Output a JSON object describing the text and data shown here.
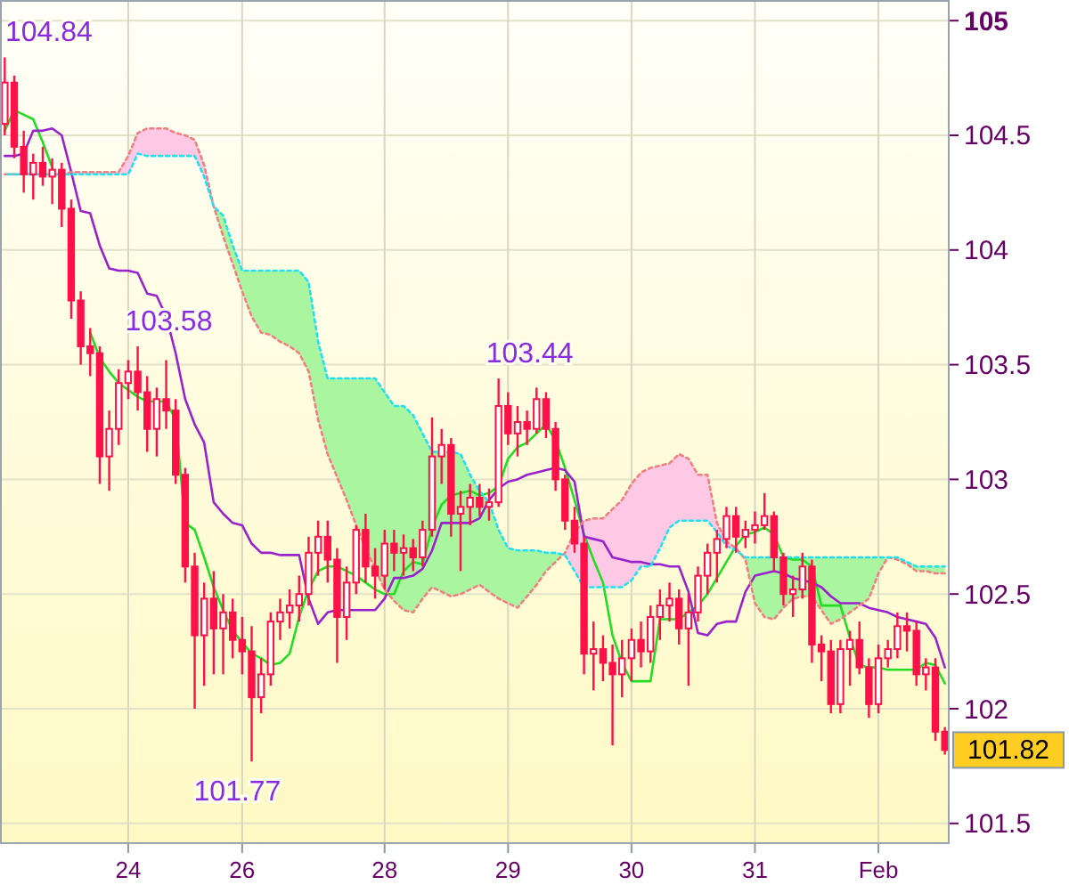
{
  "chart_data": {
    "type": "candlestick",
    "color": "#ff1048",
    "ylim": [
      101.41,
      105.09
    ],
    "yticks": [
      101.5,
      102,
      102.5,
      103,
      103.5,
      104,
      104.5,
      105
    ],
    "grid": true,
    "categories": [
      null,
      null,
      null,
      null,
      null,
      null,
      null,
      null,
      null,
      null,
      null,
      null,
      null,
      "24",
      null,
      null,
      null,
      null,
      null,
      null,
      null,
      null,
      null,
      null,
      null,
      "26",
      null,
      null,
      null,
      null,
      null,
      null,
      null,
      null,
      null,
      null,
      null,
      null,
      null,
      null,
      "28",
      null,
      null,
      null,
      null,
      null,
      null,
      null,
      null,
      null,
      null,
      null,
      null,
      "29",
      null,
      null,
      null,
      null,
      null,
      null,
      null,
      null,
      null,
      null,
      null,
      null,
      "30",
      null,
      null,
      null,
      null,
      null,
      null,
      null,
      null,
      null,
      null,
      null,
      null,
      "31",
      null,
      null,
      null,
      null,
      null,
      null,
      null,
      null,
      null,
      null,
      null,
      null,
      "Feb",
      null,
      null,
      null,
      null,
      null,
      null,
      null
    ],
    "ohlc": [
      [
        104.55,
        104.84,
        104.5,
        104.73
      ],
      [
        104.73,
        104.76,
        104.4,
        104.45
      ],
      [
        104.45,
        104.52,
        104.25,
        104.33
      ],
      [
        104.33,
        104.42,
        104.22,
        104.38
      ],
      [
        104.38,
        104.45,
        104.28,
        104.32
      ],
      [
        104.32,
        104.4,
        104.2,
        104.35
      ],
      [
        104.35,
        104.38,
        104.1,
        104.18
      ],
      [
        104.18,
        104.22,
        103.7,
        103.78
      ],
      [
        103.78,
        103.82,
        103.5,
        103.58
      ],
      [
        103.58,
        103.66,
        103.45,
        103.55
      ],
      [
        103.55,
        103.58,
        102.98,
        103.1
      ],
      [
        103.1,
        103.3,
        102.95,
        103.22
      ],
      [
        103.22,
        103.48,
        103.15,
        103.42
      ],
      [
        103.42,
        103.52,
        103.35,
        103.47
      ],
      [
        103.47,
        103.58,
        103.3,
        103.38
      ],
      [
        103.38,
        103.45,
        103.12,
        103.22
      ],
      [
        103.22,
        103.4,
        103.1,
        103.35
      ],
      [
        103.35,
        103.52,
        103.22,
        103.3
      ],
      [
        103.3,
        103.35,
        102.98,
        103.02
      ],
      [
        103.02,
        103.05,
        102.55,
        102.62
      ],
      [
        102.62,
        102.68,
        102.0,
        102.32
      ],
      [
        102.32,
        102.55,
        102.1,
        102.48
      ],
      [
        102.48,
        102.6,
        102.15,
        102.35
      ],
      [
        102.35,
        102.5,
        102.15,
        102.42
      ],
      [
        102.42,
        102.48,
        102.22,
        102.3
      ],
      [
        102.3,
        102.4,
        102.15,
        102.25
      ],
      [
        102.25,
        102.36,
        101.77,
        102.05
      ],
      [
        102.05,
        102.22,
        101.98,
        102.15
      ],
      [
        102.15,
        102.42,
        102.1,
        102.38
      ],
      [
        102.38,
        102.48,
        102.3,
        102.42
      ],
      [
        102.42,
        102.52,
        102.35,
        102.45
      ],
      [
        102.45,
        102.58,
        102.38,
        102.5
      ],
      [
        102.5,
        102.75,
        102.45,
        102.68
      ],
      [
        102.68,
        102.82,
        102.58,
        102.75
      ],
      [
        102.75,
        102.82,
        102.55,
        102.65
      ],
      [
        102.65,
        102.7,
        102.2,
        102.4
      ],
      [
        102.4,
        102.62,
        102.3,
        102.55
      ],
      [
        102.55,
        102.8,
        102.5,
        102.78
      ],
      [
        102.78,
        102.85,
        102.55,
        102.62
      ],
      [
        102.62,
        102.7,
        102.48,
        102.58
      ],
      [
        102.58,
        102.78,
        102.52,
        102.72
      ],
      [
        102.72,
        102.78,
        102.6,
        102.68
      ],
      [
        102.68,
        102.76,
        102.58,
        102.7
      ],
      [
        102.7,
        102.74,
        102.6,
        102.66
      ],
      [
        102.66,
        102.82,
        102.62,
        102.78
      ],
      [
        102.78,
        103.27,
        102.75,
        103.1
      ],
      [
        103.1,
        103.22,
        102.98,
        103.15
      ],
      [
        103.15,
        103.18,
        102.75,
        102.85
      ],
      [
        102.85,
        102.95,
        102.6,
        102.88
      ],
      [
        102.88,
        102.98,
        102.8,
        102.92
      ],
      [
        102.92,
        102.98,
        102.84,
        102.88
      ],
      [
        102.88,
        102.96,
        102.82,
        102.9
      ],
      [
        102.9,
        103.44,
        102.88,
        103.32
      ],
      [
        103.32,
        103.38,
        103.15,
        103.2
      ],
      [
        103.2,
        103.32,
        103.1,
        103.25
      ],
      [
        103.25,
        103.3,
        103.15,
        103.22
      ],
      [
        103.22,
        103.4,
        103.2,
        103.35
      ],
      [
        103.35,
        103.38,
        103.18,
        103.22
      ],
      [
        103.22,
        103.25,
        102.95,
        103.0
      ],
      [
        103.0,
        103.02,
        102.78,
        102.82
      ],
      [
        102.82,
        102.88,
        102.68,
        102.72
      ],
      [
        102.72,
        102.75,
        102.15,
        102.24
      ],
      [
        102.24,
        102.38,
        102.08,
        102.26
      ],
      [
        102.26,
        102.32,
        102.12,
        102.2
      ],
      [
        102.2,
        102.28,
        101.84,
        102.15
      ],
      [
        102.15,
        102.3,
        102.05,
        102.22
      ],
      [
        102.22,
        102.35,
        102.12,
        102.3
      ],
      [
        102.3,
        102.38,
        102.18,
        102.25
      ],
      [
        102.25,
        102.45,
        102.2,
        102.4
      ],
      [
        102.4,
        102.52,
        102.3,
        102.45
      ],
      [
        102.45,
        102.55,
        102.38,
        102.48
      ],
      [
        102.48,
        102.52,
        102.28,
        102.35
      ],
      [
        102.35,
        102.5,
        102.1,
        102.42
      ],
      [
        102.42,
        102.62,
        102.38,
        102.58
      ],
      [
        102.58,
        102.72,
        102.5,
        102.68
      ],
      [
        102.68,
        102.78,
        102.55,
        102.74
      ],
      [
        102.74,
        102.88,
        102.7,
        102.84
      ],
      [
        102.84,
        102.88,
        102.68,
        102.75
      ],
      [
        102.75,
        102.82,
        102.7,
        102.78
      ],
      [
        102.78,
        102.86,
        102.72,
        102.8
      ],
      [
        102.8,
        102.94,
        102.78,
        102.84
      ],
      [
        102.84,
        102.86,
        102.6,
        102.66
      ],
      [
        102.66,
        102.68,
        102.45,
        102.5
      ],
      [
        102.5,
        102.58,
        102.4,
        102.52
      ],
      [
        102.52,
        102.68,
        102.48,
        102.62
      ],
      [
        102.62,
        102.65,
        102.2,
        102.28
      ],
      [
        102.28,
        102.32,
        102.12,
        102.25
      ],
      [
        102.25,
        102.3,
        101.98,
        102.02
      ],
      [
        102.02,
        102.3,
        101.98,
        102.26
      ],
      [
        102.26,
        102.34,
        102.1,
        102.3
      ],
      [
        102.3,
        102.38,
        102.15,
        102.18
      ],
      [
        102.18,
        102.22,
        101.96,
        102.02
      ],
      [
        102.02,
        102.28,
        101.98,
        102.22
      ],
      [
        102.22,
        102.3,
        102.18,
        102.26
      ],
      [
        102.26,
        102.42,
        102.22,
        102.36
      ],
      [
        102.36,
        102.42,
        102.25,
        102.34
      ],
      [
        102.34,
        102.38,
        102.1,
        102.15
      ],
      [
        102.15,
        102.22,
        102.08,
        102.18
      ],
      [
        102.18,
        102.22,
        101.86,
        101.9
      ],
      [
        101.9,
        101.92,
        101.8,
        101.82
      ]
    ],
    "series": [
      {
        "type": "line",
        "color": "#22dd22",
        "values": [
          104.52,
          104.61,
          104.59,
          104.57,
          104.47,
          104.36,
          null,
          null,
          null,
          103.64,
          103.53,
          103.47,
          103.42,
          103.39,
          103.36,
          103.34,
          103.34,
          103.34,
          103.26,
          102.81,
          102.78,
          102.66,
          102.53,
          102.43,
          102.34,
          102.29,
          102.24,
          102.22,
          102.19,
          102.2,
          102.24,
          102.4,
          102.52,
          102.6,
          102.62,
          102.62,
          102.6,
          102.58,
          102.55,
          102.52,
          102.5,
          102.5,
          102.6,
          102.64,
          102.63,
          102.79,
          102.89,
          102.93,
          102.94,
          102.95,
          102.93,
          102.94,
          102.97,
          103.09,
          103.14,
          103.16,
          103.2,
          103.24,
          103.17,
          103.05,
          102.91,
          102.76,
          102.65,
          102.55,
          102.32,
          102.2,
          102.12,
          102.12,
          102.12,
          102.39,
          102.39,
          102.39,
          102.42,
          102.45,
          102.5,
          102.57,
          102.64,
          102.71,
          102.76,
          102.77,
          102.79,
          102.76,
          102.66,
          102.65,
          102.65,
          102.62,
          102.45,
          102.45,
          102.45,
          102.31,
          102.19,
          102.18,
          102.18,
          102.17,
          102.17,
          102.17,
          102.17,
          102.2,
          102.19,
          102.11
        ]
      },
      {
        "type": "line",
        "color": "#9922cc",
        "values": [
          104.41,
          104.41,
          104.42,
          104.52,
          104.52,
          104.53,
          104.5,
          104.34,
          104.17,
          104.16,
          104.02,
          103.92,
          103.91,
          103.91,
          103.9,
          103.81,
          103.8,
          103.71,
          103.55,
          103.35,
          103.24,
          103.16,
          102.9,
          102.85,
          102.81,
          102.8,
          102.72,
          102.68,
          102.68,
          102.67,
          102.67,
          102.67,
          102.48,
          102.37,
          102.42,
          102.43,
          102.43,
          102.43,
          102.43,
          102.43,
          102.48,
          102.57,
          102.57,
          102.58,
          102.61,
          102.69,
          102.81,
          102.81,
          102.81,
          102.81,
          102.83,
          102.91,
          102.96,
          102.99,
          103.0,
          103.02,
          103.03,
          103.04,
          103.05,
          103.04,
          102.99,
          102.75,
          102.74,
          102.73,
          102.66,
          102.65,
          102.64,
          102.64,
          102.63,
          102.63,
          102.62,
          102.62,
          102.51,
          102.33,
          102.32,
          102.37,
          102.38,
          102.38,
          102.51,
          102.58,
          102.59,
          102.6,
          102.59,
          102.57,
          102.56,
          102.55,
          102.53,
          102.49,
          102.46,
          102.46,
          102.46,
          102.44,
          102.43,
          102.42,
          102.4,
          102.39,
          102.38,
          102.37,
          102.31,
          102.18
        ]
      },
      {
        "type": "line",
        "color": "#f08080",
        "line_style": "dashed",
        "values": [
          104.33,
          104.33,
          104.33,
          104.33,
          104.33,
          104.33,
          104.33,
          104.34,
          104.34,
          104.34,
          104.34,
          104.34,
          104.34,
          104.41,
          104.51,
          104.53,
          104.53,
          104.53,
          104.51,
          104.5,
          104.48,
          104.37,
          104.19,
          104.06,
          103.94,
          103.82,
          103.71,
          103.64,
          103.63,
          103.6,
          103.58,
          103.55,
          103.47,
          103.26,
          103.11,
          103.01,
          102.91,
          102.8,
          102.7,
          102.61,
          102.52,
          102.47,
          102.43,
          102.42,
          102.48,
          102.53,
          102.51,
          102.49,
          102.5,
          102.52,
          102.54,
          102.51,
          102.48,
          102.46,
          102.44,
          102.49,
          102.54,
          102.6,
          102.64,
          102.68,
          102.77,
          102.82,
          102.83,
          102.83,
          102.87,
          102.91,
          102.98,
          103.03,
          103.05,
          103.06,
          103.07,
          103.11,
          103.09,
          103.02,
          103.02,
          102.81,
          102.73,
          102.7,
          102.65,
          102.46,
          102.4,
          102.39,
          102.44,
          102.48,
          102.49,
          102.49,
          102.43,
          102.37,
          102.39,
          102.42,
          102.45,
          102.48,
          102.59,
          102.66,
          102.65,
          102.63,
          102.6,
          102.6,
          102.59,
          102.59
        ],
        "colors": [
          "#aaf5a0",
          "#aaf5a0",
          "#aaf5a0",
          "#aaf5a0",
          "#aaf5a0",
          "#aaf5a0",
          "#aaf5a0",
          "#ffc8e4",
          "#ffc8e4",
          "#ffc8e4",
          "#ffc8e4",
          "#ffc8e4",
          "#ffc8e4",
          "#ffc8e4",
          "#ffc8e4",
          "#ffc8e4",
          "#ffc8e4",
          "#ffc8e4",
          "#ffc8e4",
          "#ffc8e4",
          "#ffc8e4",
          "#ffc8e4",
          "#aaf5a0",
          "#aaf5a0",
          "#aaf5a0",
          "#aaf5a0",
          "#aaf5a0",
          "#aaf5a0",
          "#aaf5a0",
          "#aaf5a0",
          "#aaf5a0",
          "#aaf5a0",
          "#aaf5a0",
          "#aaf5a0",
          "#aaf5a0",
          "#aaf5a0",
          "#aaf5a0",
          "#aaf5a0",
          "#aaf5a0",
          "#aaf5a0",
          "#aaf5a0",
          "#aaf5a0",
          "#aaf5a0",
          "#aaf5a0",
          "#aaf5a0",
          "#aaf5a0",
          "#aaf5a0",
          "#aaf5a0",
          "#aaf5a0",
          "#aaf5a0",
          "#aaf5a0",
          "#aaf5a0",
          "#aaf5a0",
          "#aaf5a0",
          "#aaf5a0",
          "#aaf5a0",
          "#aaf5a0",
          "#aaf5a0",
          "#aaf5a0",
          "#ffc8e4",
          "#ffc8e4",
          "#ffc8e4",
          "#ffc8e4",
          "#ffc8e4",
          "#ffc8e4",
          "#ffc8e4",
          "#ffc8e4",
          "#ffc8e4",
          "#ffc8e4",
          "#ffc8e4",
          "#ffc8e4",
          "#ffc8e4",
          "#ffc8e4",
          "#ffc8e4",
          "#ffc8e4",
          "#ffc8e4",
          "#ffc8e4",
          "#ffc8e4",
          "#aaf5a0",
          "#aaf5a0",
          "#aaf5a0",
          "#aaf5a0",
          "#aaf5a0",
          "#aaf5a0",
          "#aaf5a0",
          "#aaf5a0",
          "#aaf5a0",
          "#aaf5a0",
          "#aaf5a0",
          "#aaf5a0",
          "#aaf5a0",
          "#aaf5a0",
          "#aaf5a0",
          "#aaf5a0",
          "#aaf5a0",
          "#aaf5a0",
          "#aaf5a0",
          "#aaf5a0",
          "#aaf5a0",
          "#aaf5a0"
        ]
      },
      {
        "type": "line",
        "color": "#22e0f0",
        "line_style": "dashed",
        "values": [
          104.33,
          104.33,
          104.33,
          104.33,
          104.33,
          104.33,
          104.33,
          104.33,
          104.33,
          104.33,
          104.33,
          104.33,
          104.33,
          104.33,
          104.42,
          104.41,
          104.41,
          104.41,
          104.41,
          104.41,
          104.41,
          104.32,
          104.19,
          104.15,
          104.02,
          103.91,
          103.91,
          103.91,
          103.91,
          103.91,
          103.91,
          103.91,
          103.86,
          103.6,
          103.44,
          103.44,
          103.44,
          103.44,
          103.44,
          103.44,
          103.38,
          103.32,
          103.32,
          103.28,
          103.2,
          103.12,
          103.12,
          103.12,
          103.11,
          103.02,
          102.95,
          102.9,
          102.78,
          102.7,
          102.69,
          102.69,
          102.69,
          102.68,
          102.68,
          102.67,
          102.6,
          102.53,
          102.53,
          102.53,
          102.53,
          102.53,
          102.56,
          102.62,
          102.62,
          102.7,
          102.79,
          102.82,
          102.82,
          102.82,
          102.82,
          102.77,
          102.71,
          102.69,
          102.66,
          102.66,
          102.66,
          102.66,
          102.66,
          102.66,
          102.66,
          102.66,
          102.66,
          102.66,
          102.66,
          102.66,
          102.66,
          102.66,
          102.66,
          102.66,
          102.66,
          102.64,
          102.62,
          102.62,
          102.62,
          102.62
        ]
      }
    ],
    "value_labels": [
      "104.84",
      null,
      null,
      null,
      null,
      null,
      null,
      null,
      null,
      null,
      null,
      null,
      null,
      null,
      "103.58",
      null,
      null,
      null,
      null,
      null,
      null,
      null,
      null,
      null,
      null,
      null,
      "101.77",
      null,
      null,
      null,
      null,
      null,
      null,
      null,
      null,
      null,
      null,
      null,
      null,
      null,
      null,
      null,
      null,
      null,
      null,
      null,
      null,
      null,
      null,
      null,
      null,
      null,
      "103.44",
      null,
      null,
      null,
      null,
      null,
      null,
      null,
      null,
      null,
      null,
      null,
      null,
      null,
      null,
      null,
      null,
      null,
      null,
      null,
      null,
      null,
      null,
      null,
      null,
      null,
      null,
      null,
      null,
      null,
      null,
      null,
      null,
      null,
      null,
      null,
      null,
      null,
      null,
      null,
      null,
      null,
      null,
      null,
      null,
      null,
      null,
      "101.82"
    ]
  }
}
